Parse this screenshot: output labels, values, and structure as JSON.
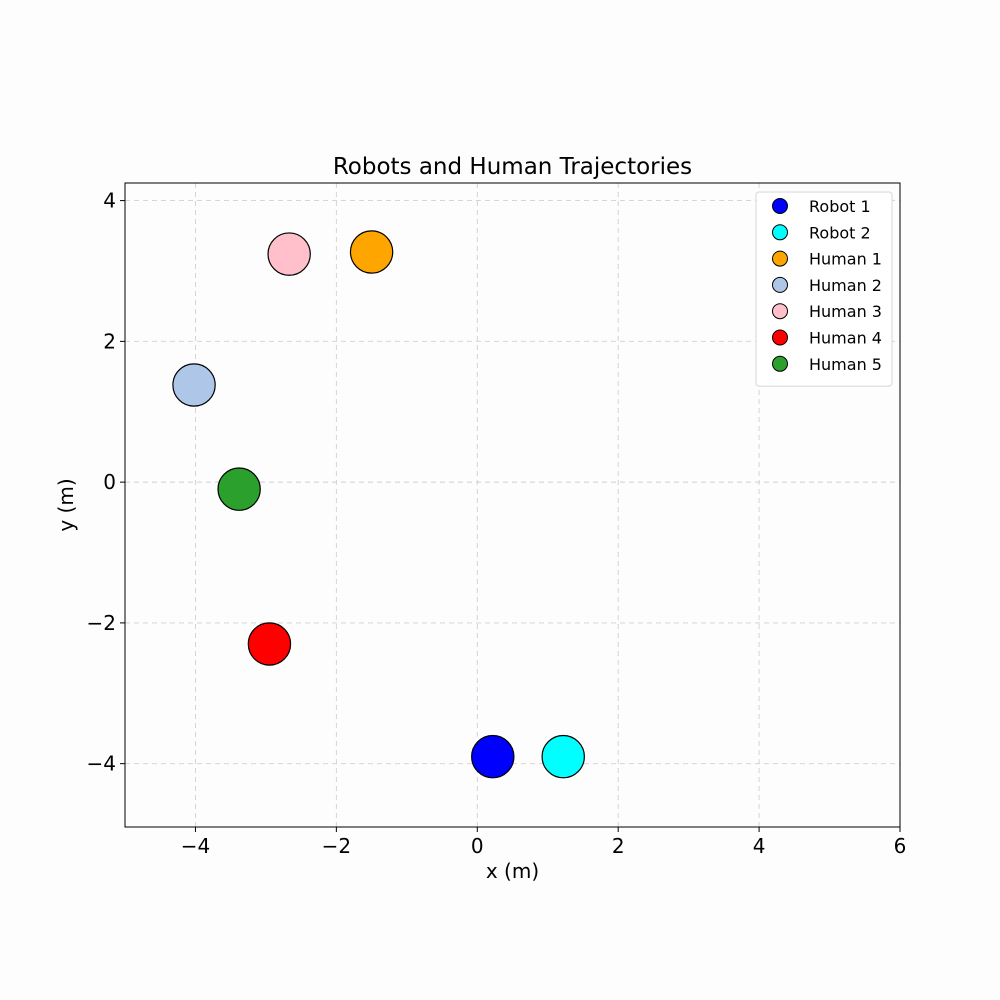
{
  "chart_data": {
    "type": "scatter",
    "title": "Robots and Human Trajectories",
    "xlabel": "x (m)",
    "ylabel": "y (m)",
    "xlim": [
      -5.0,
      6.0
    ],
    "ylim": [
      -4.9,
      4.25
    ],
    "xticks": [
      -4,
      -2,
      0,
      2,
      4,
      6
    ],
    "yticks": [
      -4,
      -2,
      0,
      2,
      4
    ],
    "xtick_labels": [
      "−4",
      "−2",
      "0",
      "2",
      "4",
      "6"
    ],
    "ytick_labels": [
      "−4",
      "−2",
      "0",
      "2",
      "4"
    ],
    "grid": true,
    "legend_position": "top-right",
    "series": [
      {
        "name": "Robot 1",
        "color": "#0000ff",
        "x": 0.22,
        "y": -3.9
      },
      {
        "name": "Robot 2",
        "color": "#00ffff",
        "x": 1.22,
        "y": -3.9
      },
      {
        "name": "Human 1",
        "color": "#ffa500",
        "x": -1.5,
        "y": 3.27
      },
      {
        "name": "Human 2",
        "color": "#aec7e8",
        "x": -4.02,
        "y": 1.38
      },
      {
        "name": "Human 3",
        "color": "#ffc0cb",
        "x": -2.67,
        "y": 3.24
      },
      {
        "name": "Human 4",
        "color": "#ff0000",
        "x": -2.95,
        "y": -2.3
      },
      {
        "name": "Human 5",
        "color": "#2ca02c",
        "x": -3.38,
        "y": -0.1
      }
    ],
    "marker_radius_m": 0.3
  }
}
